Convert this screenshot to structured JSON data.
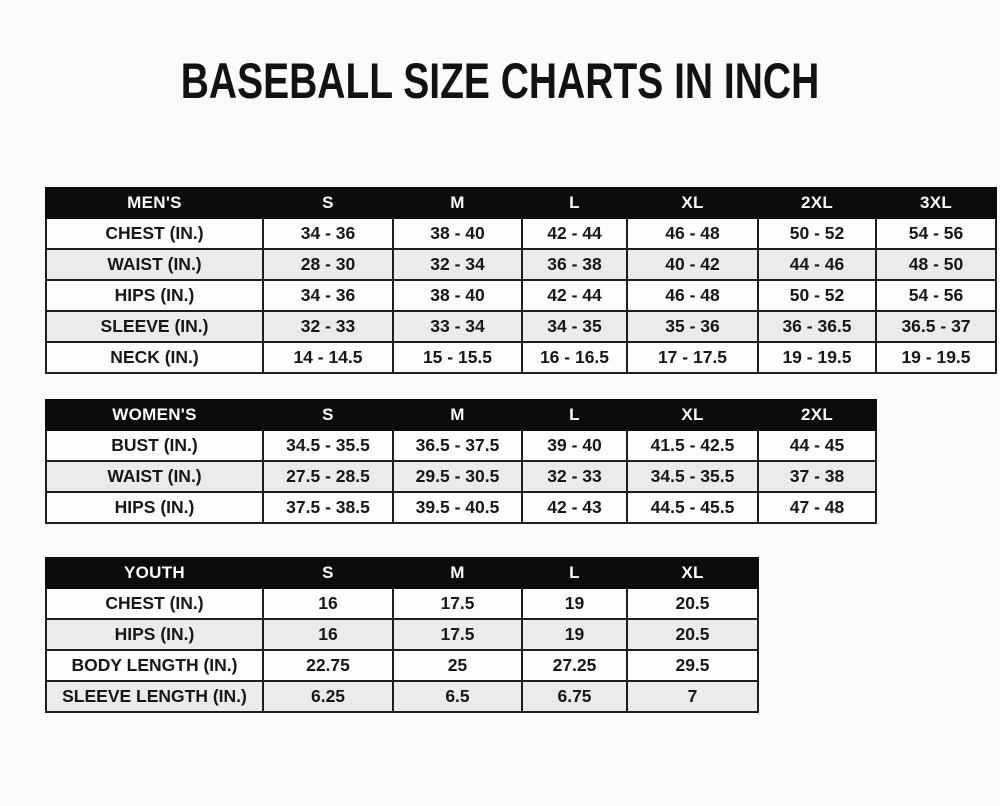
{
  "page": {
    "title": "BASEBALL SIZE CHARTS IN INCH"
  },
  "colors": {
    "header_bg": "#0c0c0c",
    "header_text": "#fcfcfc",
    "row_white": "#fdfdfd",
    "row_alt_gray": "#ebebeb",
    "border": "#1e1e1e",
    "body_text": "#171717",
    "page_bg": "#fbfbfa"
  },
  "chart_data": [
    {
      "type": "table",
      "title": "MEN'S",
      "columns": [
        "MEN'S",
        "S",
        "M",
        "L",
        "XL",
        "2XL",
        "3XL"
      ],
      "rows": [
        [
          "CHEST (IN.)",
          "34 - 36",
          "38 - 40",
          "42 - 44",
          "46 - 48",
          "50 - 52",
          "54 - 56"
        ],
        [
          "WAIST (IN.)",
          "28 - 30",
          "32 - 34",
          "36 - 38",
          "40 - 42",
          "44 - 46",
          "48 - 50"
        ],
        [
          "HIPS (IN.)",
          "34 - 36",
          "38 - 40",
          "42 - 44",
          "46 - 48",
          "50 - 52",
          "54 - 56"
        ],
        [
          "SLEEVE (IN.)",
          "32 - 33",
          "33 - 34",
          "34 - 35",
          "35 - 36",
          "36 - 36.5",
          "36.5 - 37"
        ],
        [
          "NECK (IN.)",
          "14 - 14.5",
          "15 - 15.5",
          "16 - 16.5",
          "17 - 17.5",
          "19 - 19.5",
          "19 - 19.5"
        ]
      ]
    },
    {
      "type": "table",
      "title": "WOMEN'S",
      "columns": [
        "WOMEN'S",
        "S",
        "M",
        "L",
        "XL",
        "2XL"
      ],
      "rows": [
        [
          "BUST (IN.)",
          "34.5 - 35.5",
          "36.5 - 37.5",
          "39 - 40",
          "41.5 - 42.5",
          "44 - 45"
        ],
        [
          "WAIST (IN.)",
          "27.5 - 28.5",
          "29.5 - 30.5",
          "32 - 33",
          "34.5 - 35.5",
          "37 - 38"
        ],
        [
          "HIPS (IN.)",
          "37.5 - 38.5",
          "39.5 - 40.5",
          "42 - 43",
          "44.5 - 45.5",
          "47 - 48"
        ]
      ]
    },
    {
      "type": "table",
      "title": "YOUTH",
      "columns": [
        "YOUTH",
        "S",
        "M",
        "L",
        "XL"
      ],
      "rows": [
        [
          "CHEST (IN.)",
          "16",
          "17.5",
          "19",
          "20.5"
        ],
        [
          "HIPS (IN.)",
          "16",
          "17.5",
          "19",
          "20.5"
        ],
        [
          "BODY LENGTH (IN.)",
          "22.75",
          "25",
          "27.25",
          "29.5"
        ],
        [
          "SLEEVE LENGTH (IN.)",
          "6.25",
          "6.5",
          "6.75",
          "7"
        ]
      ]
    }
  ]
}
